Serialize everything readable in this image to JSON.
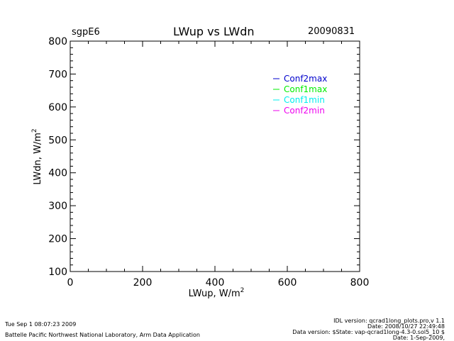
{
  "header": {
    "site": "sgpE6",
    "title": "LWup vs LWdn",
    "date": "20090831"
  },
  "chart_data": {
    "type": "line",
    "title": "LWup vs LWdn",
    "xlabel_main": "LWup, W/m",
    "xlabel_sup": "2",
    "ylabel_main": "LWdn, W/m",
    "ylabel_sup": "2",
    "xlim": [
      0,
      800
    ],
    "ylim": [
      100,
      800
    ],
    "xticks": [
      0,
      200,
      400,
      600,
      800
    ],
    "yticks": [
      100,
      200,
      300,
      400,
      500,
      600,
      700,
      800
    ],
    "grid": false,
    "legend_position": "top-right",
    "series": [
      {
        "name": "Conf2max",
        "color": "#0000cc",
        "points": []
      },
      {
        "name": "Conf1max",
        "color": "#00ee00",
        "points": []
      },
      {
        "name": "Conf1min",
        "color": "#00eeee",
        "points": []
      },
      {
        "name": "Conf2min",
        "color": "#ee00ee",
        "points": []
      }
    ]
  },
  "footer": {
    "timestamp": "Tue Sep  1 08:07:23 2009",
    "organization": "Battelle Pacific Northwest National Laboratory, Arm Data Application",
    "idl_version": "IDL version: qcrad1long_plots.pro,v 1.1",
    "date1": "Date: 2008/10/27 22:49:48",
    "data_version": "Data version: $State: vap-qcrad1long-4.3-0.sol5_10 $",
    "date2": "Date: 1-Sep-2009,"
  }
}
